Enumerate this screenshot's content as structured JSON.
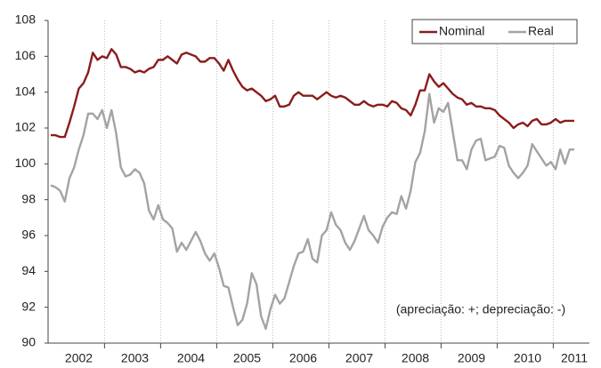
{
  "chart_data": {
    "type": "line",
    "categories": [
      null,
      null,
      null,
      null,
      null,
      null,
      "2002",
      null,
      null,
      null,
      null,
      null,
      null,
      null,
      null,
      null,
      null,
      null,
      "2003",
      null,
      null,
      null,
      null,
      null,
      null,
      null,
      null,
      null,
      null,
      null,
      "2004",
      null,
      null,
      null,
      null,
      null,
      null,
      null,
      null,
      null,
      null,
      null,
      "2005",
      null,
      null,
      null,
      null,
      null,
      null,
      null,
      null,
      null,
      null,
      null,
      "2006",
      null,
      null,
      null,
      null,
      null,
      null,
      null,
      null,
      null,
      null,
      null,
      "2007",
      null,
      null,
      null,
      null,
      null,
      null,
      null,
      null,
      null,
      null,
      null,
      "2008",
      null,
      null,
      null,
      null,
      null,
      null,
      null,
      null,
      null,
      null,
      null,
      "2009",
      null,
      null,
      null,
      null,
      null,
      null,
      null,
      null,
      null,
      null,
      null,
      "2010",
      null,
      null,
      null,
      null,
      null,
      null,
      null,
      null,
      null,
      "2011"
    ],
    "series": [
      {
        "name": "Nominal",
        "color": "#8b1c1c",
        "values": [
          101.6,
          101.6,
          101.5,
          101.5,
          102.3,
          103.2,
          104.2,
          104.5,
          105.1,
          106.2,
          105.8,
          106.0,
          105.9,
          106.4,
          106.1,
          105.4,
          105.4,
          105.3,
          105.1,
          105.2,
          105.1,
          105.3,
          105.4,
          105.8,
          105.8,
          106.0,
          105.8,
          105.6,
          106.1,
          106.2,
          106.1,
          106.0,
          105.7,
          105.7,
          105.9,
          105.9,
          105.6,
          105.2,
          105.8,
          105.2,
          104.7,
          104.3,
          104.1,
          104.2,
          104.0,
          103.8,
          103.5,
          103.6,
          103.8,
          103.2,
          103.2,
          103.3,
          103.8,
          104.0,
          103.8,
          103.8,
          103.8,
          103.6,
          103.8,
          104.0,
          103.8,
          103.7,
          103.8,
          103.7,
          103.5,
          103.3,
          103.3,
          103.5,
          103.3,
          103.2,
          103.3,
          103.3,
          103.2,
          103.5,
          103.4,
          103.1,
          103.0,
          102.7,
          103.3,
          104.1,
          104.1,
          105.0,
          104.6,
          104.3,
          104.5,
          104.2,
          103.9,
          103.7,
          103.6,
          103.3,
          103.4,
          103.2,
          103.2,
          103.1,
          103.1,
          103.0,
          102.7,
          102.5,
          102.3,
          102.0,
          102.2,
          102.3,
          102.1,
          102.4,
          102.5,
          102.2,
          102.2,
          102.3,
          102.5,
          102.3,
          102.4,
          102.4,
          102.4
        ]
      },
      {
        "name": "Real",
        "color": "#a3a3a3",
        "values": [
          98.8,
          98.7,
          98.5,
          97.9,
          99.2,
          99.8,
          100.8,
          101.6,
          102.8,
          102.8,
          102.5,
          103.0,
          102.0,
          103.0,
          101.7,
          99.8,
          99.3,
          99.4,
          99.7,
          99.5,
          98.9,
          97.4,
          96.9,
          97.7,
          96.9,
          96.7,
          96.4,
          95.1,
          95.6,
          95.2,
          95.7,
          96.2,
          95.7,
          95.0,
          94.6,
          95.0,
          94.2,
          93.2,
          93.1,
          92.0,
          91.0,
          91.3,
          92.2,
          93.9,
          93.3,
          91.5,
          90.8,
          91.9,
          92.7,
          92.2,
          92.5,
          93.4,
          94.3,
          95.0,
          95.1,
          95.8,
          94.7,
          94.5,
          96.0,
          96.3,
          97.3,
          96.6,
          96.3,
          95.6,
          95.2,
          95.7,
          96.4,
          97.1,
          96.3,
          96.0,
          95.6,
          96.5,
          97.0,
          97.3,
          97.2,
          98.2,
          97.5,
          98.5,
          100.1,
          100.6,
          101.8,
          103.9,
          102.3,
          103.1,
          102.9,
          103.4,
          101.8,
          100.2,
          100.2,
          99.7,
          100.8,
          101.3,
          101.4,
          100.2,
          100.3,
          100.4,
          101.0,
          100.9,
          99.9,
          99.5,
          99.2,
          99.5,
          99.9,
          101.1,
          100.7,
          100.3,
          99.9,
          100.1,
          99.7,
          100.8,
          100.0,
          100.8,
          100.8
        ]
      }
    ],
    "ylim": [
      90,
      108
    ],
    "yticks": [
      90,
      92,
      94,
      96,
      98,
      100,
      102,
      104,
      106,
      108
    ],
    "legend": "upper right",
    "annotation": "(apreciação: +; depreciação: -)"
  }
}
